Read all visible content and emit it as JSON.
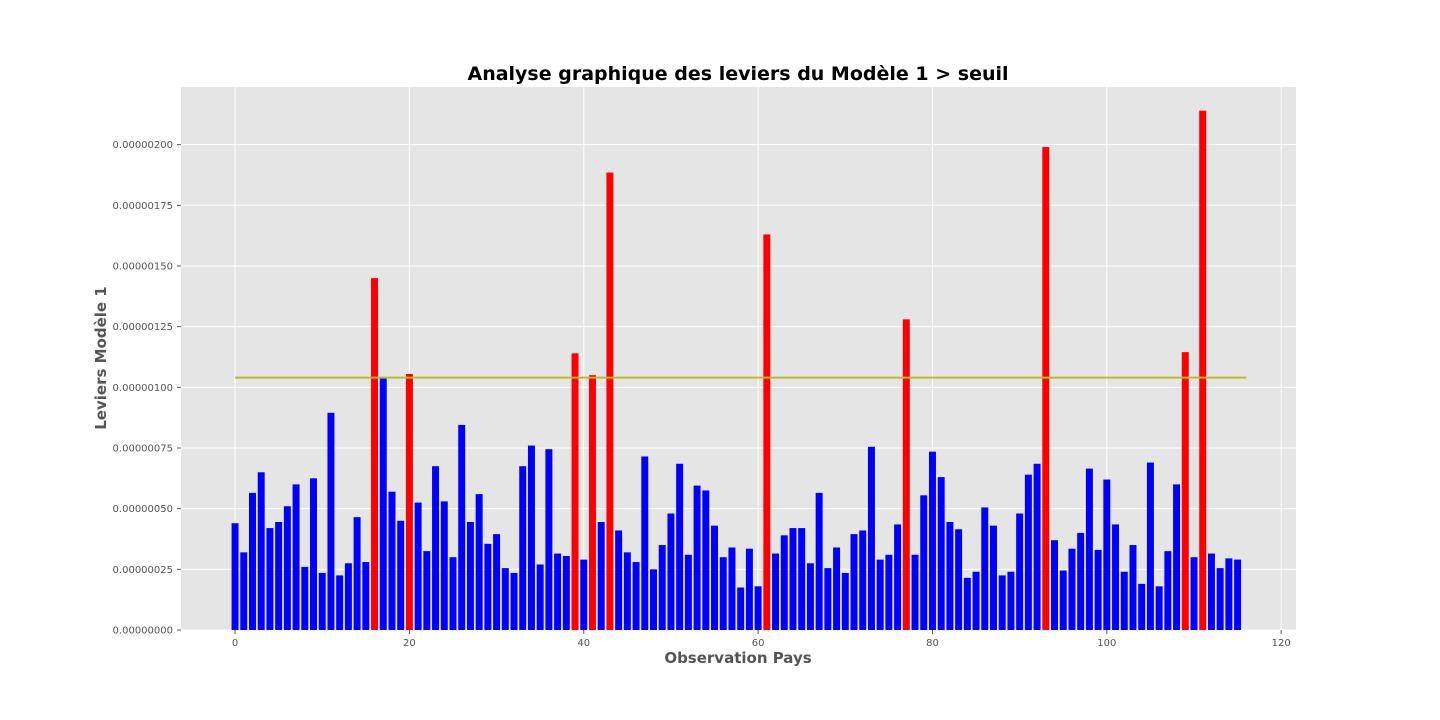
{
  "chart_data": {
    "type": "bar",
    "title": "Analyse graphique des leviers du Modèle 1 > seuil",
    "xlabel": "Observation Pays",
    "ylabel": "Leviers Modèle 1",
    "xlim": [
      -6.2,
      121.7
    ],
    "ylim": [
      0,
      2.2375e-06
    ],
    "xticks": [
      0,
      20,
      40,
      60,
      80,
      100,
      120
    ],
    "xtick_labels": [
      "0",
      "20",
      "40",
      "60",
      "80",
      "100",
      "120"
    ],
    "yticks": [
      0,
      2.5e-07,
      5e-07,
      7.5e-07,
      1e-06,
      1.25e-06,
      1.5e-06,
      1.75e-06,
      2e-06
    ],
    "ytick_labels": [
      "0.00000000",
      "0.00000025",
      "0.00000050",
      "0.00000075",
      "0.00000100",
      "0.00000125",
      "0.00000150",
      "0.00000175",
      "0.00000200"
    ],
    "grid": true,
    "threshold": {
      "value": 1.04e-06,
      "x_start": 0,
      "x_end": 116,
      "color": "#BCBD22"
    },
    "x": [
      0,
      1,
      2,
      3,
      4,
      5,
      6,
      7,
      8,
      9,
      10,
      11,
      12,
      13,
      14,
      15,
      16,
      17,
      18,
      19,
      20,
      21,
      22,
      23,
      24,
      25,
      26,
      27,
      28,
      29,
      30,
      31,
      32,
      33,
      34,
      35,
      36,
      37,
      38,
      39,
      40,
      41,
      42,
      43,
      44,
      45,
      46,
      47,
      48,
      49,
      50,
      51,
      52,
      53,
      54,
      55,
      56,
      57,
      58,
      59,
      60,
      61,
      62,
      63,
      64,
      65,
      66,
      67,
      68,
      69,
      70,
      71,
      72,
      73,
      74,
      75,
      76,
      77,
      78,
      79,
      80,
      81,
      82,
      83,
      84,
      85,
      86,
      87,
      88,
      89,
      90,
      91,
      92,
      93,
      94,
      95,
      96,
      97,
      98,
      99,
      100,
      101,
      102,
      103,
      104,
      105,
      106,
      107,
      108,
      109,
      110,
      111,
      112,
      113,
      114,
      115
    ],
    "values": [
      4.4e-07,
      3.2e-07,
      5.65e-07,
      6.5e-07,
      4.2e-07,
      4.45e-07,
      5.1e-07,
      6e-07,
      2.6e-07,
      6.25e-07,
      2.35e-07,
      8.95e-07,
      2.25e-07,
      2.75e-07,
      4.65e-07,
      2.8e-07,
      1.45e-06,
      1.04e-06,
      5.7e-07,
      4.5e-07,
      1.055e-06,
      5.25e-07,
      3.25e-07,
      6.75e-07,
      5.3e-07,
      3e-07,
      8.45e-07,
      4.45e-07,
      5.6e-07,
      3.55e-07,
      3.95e-07,
      2.55e-07,
      2.35e-07,
      6.75e-07,
      7.6e-07,
      2.7e-07,
      7.45e-07,
      3.15e-07,
      3.05e-07,
      1.14e-06,
      2.9e-07,
      1.05e-06,
      4.45e-07,
      1.885e-06,
      4.1e-07,
      3.2e-07,
      2.8e-07,
      7.15e-07,
      2.5e-07,
      3.5e-07,
      4.8e-07,
      6.85e-07,
      3.1e-07,
      5.95e-07,
      5.75e-07,
      4.3e-07,
      3e-07,
      3.4e-07,
      1.75e-07,
      3.35e-07,
      1.8e-07,
      1.63e-06,
      3.15e-07,
      3.9e-07,
      4.2e-07,
      4.2e-07,
      2.75e-07,
      5.65e-07,
      2.55e-07,
      3.4e-07,
      2.35e-07,
      3.95e-07,
      4.1e-07,
      7.55e-07,
      2.9e-07,
      3.1e-07,
      4.35e-07,
      1.28e-06,
      3.1e-07,
      5.55e-07,
      7.35e-07,
      6.3e-07,
      4.45e-07,
      4.15e-07,
      2.15e-07,
      2.4e-07,
      5.05e-07,
      4.3e-07,
      2.25e-07,
      2.4e-07,
      4.8e-07,
      6.4e-07,
      6.85e-07,
      1.99e-06,
      3.7e-07,
      2.45e-07,
      3.35e-07,
      4e-07,
      6.65e-07,
      3.3e-07,
      6.2e-07,
      4.35e-07,
      2.4e-07,
      3.5e-07,
      1.9e-07,
      6.9e-07,
      1.8e-07,
      3.25e-07,
      6e-07,
      1.145e-06,
      3e-07,
      2.14e-06,
      3.15e-07,
      2.55e-07,
      2.95e-07,
      2.9e-07
    ],
    "bar_colors": {
      "below": "#0000FF",
      "above": "#FF0000"
    }
  }
}
